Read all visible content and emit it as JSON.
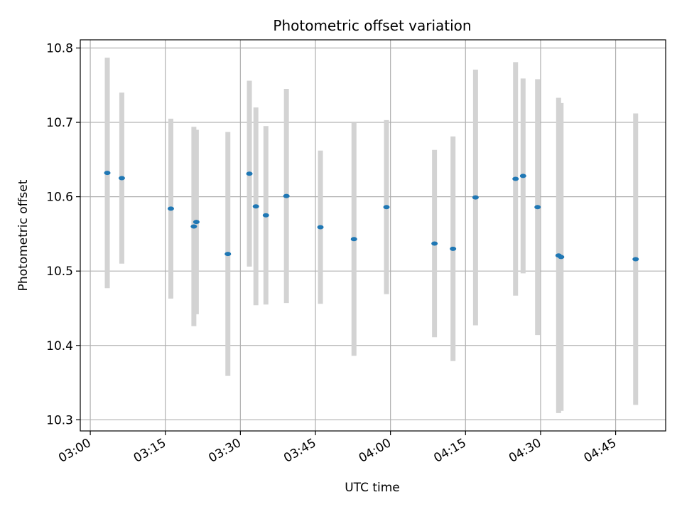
{
  "chart_data": {
    "type": "scatter",
    "title": "Photometric offset variation",
    "xlabel": "UTC time",
    "ylabel": "Photometric offset",
    "x_tick_labels": [
      "03:00",
      "03:15",
      "03:30",
      "03:45",
      "04:00",
      "04:15",
      "04:30",
      "04:45"
    ],
    "x_ticks_minutes": [
      180,
      195,
      210,
      225,
      240,
      255,
      270,
      285
    ],
    "y_tick_labels": [
      "10.3",
      "10.4",
      "10.5",
      "10.6",
      "10.7",
      "10.8"
    ],
    "y_ticks": [
      10.3,
      10.4,
      10.5,
      10.6,
      10.7,
      10.8
    ],
    "xlim": [
      "02:58",
      "04:55"
    ],
    "ylim": [
      10.285,
      10.811
    ],
    "grid": true,
    "marker_color": "#1f77b4",
    "errorbar_color": "#d3d3d3",
    "points": [
      {
        "x": "03:03.4",
        "y": 10.632,
        "err": 0.155
      },
      {
        "x": "03:06.3",
        "y": 10.625,
        "err": 0.115
      },
      {
        "x": "03:16.1",
        "y": 10.584,
        "err": 0.121
      },
      {
        "x": "03:20.7",
        "y": 10.56,
        "err": 0.134
      },
      {
        "x": "03:21.2",
        "y": 10.566,
        "err": 0.124
      },
      {
        "x": "03:27.5",
        "y": 10.523,
        "err": 0.164
      },
      {
        "x": "03:31.8",
        "y": 10.631,
        "err": 0.125
      },
      {
        "x": "03:33.1",
        "y": 10.587,
        "err": 0.133
      },
      {
        "x": "03:35.1",
        "y": 10.575,
        "err": 0.12
      },
      {
        "x": "03:39.2",
        "y": 10.601,
        "err": 0.144
      },
      {
        "x": "03:46.0",
        "y": 10.559,
        "err": 0.103
      },
      {
        "x": "03:52.7",
        "y": 10.543,
        "err": 0.157
      },
      {
        "x": "03:59.2",
        "y": 10.586,
        "err": 0.117
      },
      {
        "x": "04:08.8",
        "y": 10.537,
        "err": 0.126
      },
      {
        "x": "04:12.5",
        "y": 10.53,
        "err": 0.151
      },
      {
        "x": "04:17.0",
        "y": 10.599,
        "err": 0.172
      },
      {
        "x": "04:25.0",
        "y": 10.624,
        "err": 0.157
      },
      {
        "x": "04:26.5",
        "y": 10.628,
        "err": 0.131
      },
      {
        "x": "04:29.4",
        "y": 10.586,
        "err": 0.172
      },
      {
        "x": "04:33.6",
        "y": 10.521,
        "err": 0.212
      },
      {
        "x": "04:34.1",
        "y": 10.519,
        "err": 0.207
      },
      {
        "x": "04:49.0",
        "y": 10.516,
        "err": 0.196
      }
    ]
  }
}
